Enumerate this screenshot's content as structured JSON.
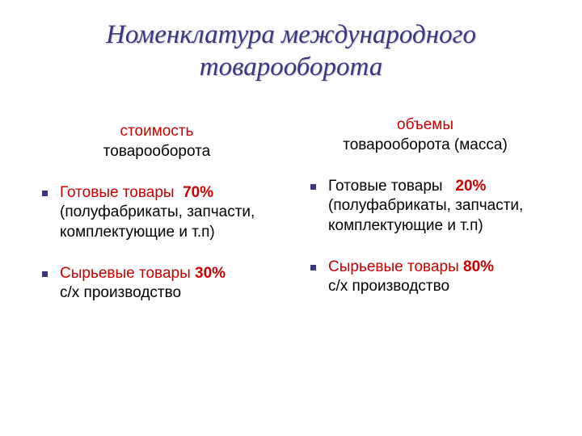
{
  "colors": {
    "title": "#3a3780",
    "accent": "#cc0000",
    "bullet": "#3a3780",
    "text": "#000000",
    "background": "#ffffff"
  },
  "typography": {
    "title_fontsize": 33,
    "title_italic": true,
    "body_fontsize": 19
  },
  "title": "Номенклатура международного товарооборота",
  "left": {
    "header_accent": "стоимость",
    "header_rest": "товарооборота",
    "items": [
      {
        "label": "Готовые товары",
        "label_color": "accent",
        "percent": "70%",
        "percent_color": "accent",
        "detail": "(полуфабрикаты, запчасти, комплектующие и т.п)"
      },
      {
        "label": "Сырьевые товары",
        "label_color": "accent",
        "percent": "30%",
        "percent_color": "accent",
        "detail": "с/х производство"
      }
    ]
  },
  "right": {
    "header_accent": "объемы",
    "header_rest": "товарооборота (масса)",
    "items": [
      {
        "label": "Готовые товары",
        "label_color": "text",
        "percent": "20%",
        "percent_color": "accent",
        "detail": "(полуфабрикаты, запчасти, комплектующие и т.п)"
      },
      {
        "label": "Сырьевые товары",
        "label_color": "accent",
        "percent": "80%",
        "percent_color": "accent",
        "detail": "с/х производство"
      }
    ]
  }
}
